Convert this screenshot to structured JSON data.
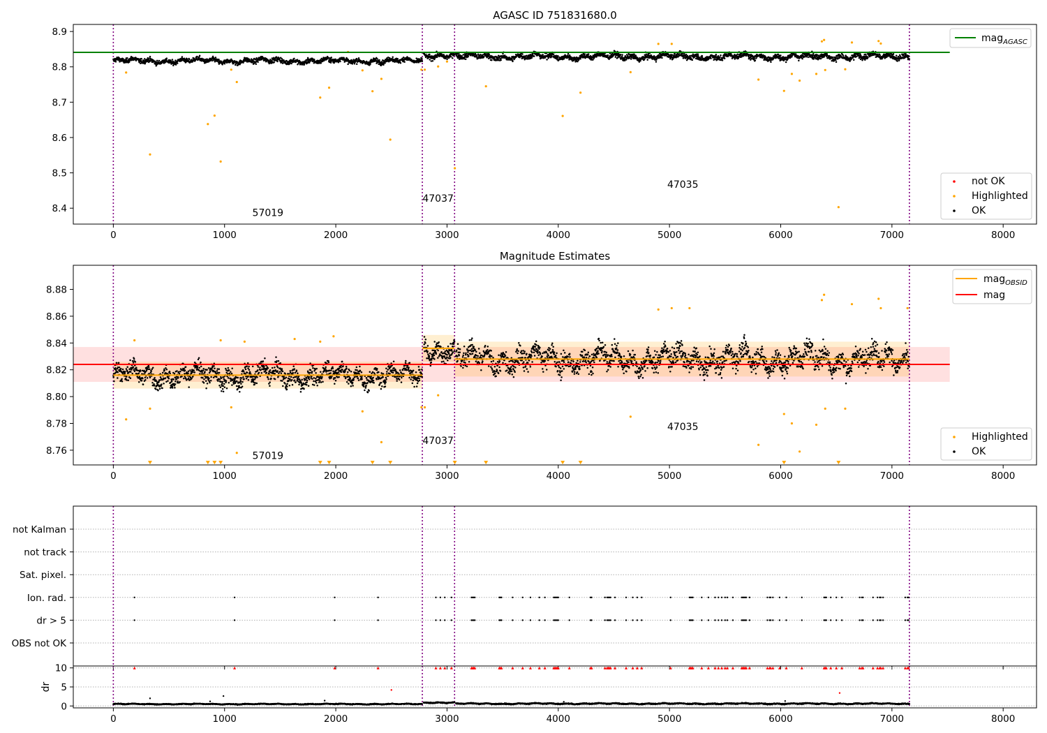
{
  "chart_data": [
    {
      "type": "scatter",
      "title": "AGASC ID 751831680.0",
      "xlim": [
        -360,
        8300
      ],
      "ylim": [
        8.355,
        8.92
      ],
      "xticks": [
        0,
        1000,
        2000,
        3000,
        4000,
        5000,
        6000,
        7000,
        8000
      ],
      "yticks": [
        8.4,
        8.5,
        8.6,
        8.7,
        8.8,
        8.9
      ],
      "ytick_labels": [
        "8.4",
        "8.5",
        "8.6",
        "8.7",
        "8.8",
        "8.9"
      ],
      "grid": false,
      "legend": {
        "top": {
          "placement": "upper right",
          "entries": [
            {
              "label": "mag",
              "sub": "AGASC",
              "color": "#008000",
              "kind": "line"
            }
          ]
        },
        "bottom": {
          "placement": "lower right",
          "entries": [
            {
              "label": "not OK",
              "color": "#ff0000",
              "kind": "dot"
            },
            {
              "label": "Highlighted",
              "color": "#ffa500",
              "kind": "dot"
            },
            {
              "label": "OK",
              "color": "#000000",
              "kind": "dot"
            }
          ]
        }
      },
      "hlines": [
        {
          "name": "mag_AGASC",
          "y": 8.841,
          "x": [
            -360,
            7520
          ],
          "color": "#008000"
        }
      ],
      "vlines": [
        0,
        2778,
        3068,
        7157
      ],
      "obsid_labels": [
        {
          "text": "57019",
          "x": 1250,
          "y": 8.378
        },
        {
          "text": "47037",
          "x": 2780,
          "y": 8.418
        },
        {
          "text": "47035",
          "x": 4980,
          "y": 8.458
        }
      ],
      "ok_segments": [
        {
          "x": [
            0,
            2778
          ],
          "mean": 8.817,
          "spread": 0.011
        },
        {
          "x": [
            2790,
            3068
          ],
          "mean": 8.833,
          "spread": 0.012
        },
        {
          "x": [
            3080,
            7157
          ],
          "mean": 8.829,
          "spread": 0.013
        }
      ],
      "highlighted": {
        "x": [
          115,
          330,
          850,
          910,
          965,
          1060,
          1110,
          1860,
          1940,
          2110,
          2240,
          2330,
          2410,
          2490,
          2770,
          2800,
          2920,
          3000,
          3070,
          3350,
          4040,
          4200,
          4650,
          4900,
          5020,
          5800,
          6030,
          6100,
          6170,
          6320,
          6370,
          6390,
          6400,
          6520,
          6580,
          6640,
          6880,
          6900
        ],
        "y": [
          8.784,
          8.552,
          8.638,
          8.662,
          8.532,
          8.792,
          8.757,
          8.713,
          8.741,
          8.842,
          8.79,
          8.731,
          8.766,
          8.594,
          8.792,
          8.792,
          8.801,
          8.815,
          8.513,
          8.745,
          8.661,
          8.727,
          8.785,
          8.865,
          8.865,
          8.764,
          8.732,
          8.78,
          8.761,
          8.78,
          8.872,
          8.876,
          8.791,
          8.403,
          8.793,
          8.869,
          8.873,
          8.866
        ]
      }
    },
    {
      "type": "scatter",
      "title": "Magnitude Estimates",
      "xlim": [
        -360,
        8300
      ],
      "ylim": [
        8.749,
        8.898
      ],
      "xticks": [
        0,
        1000,
        2000,
        3000,
        4000,
        5000,
        6000,
        7000,
        8000
      ],
      "yticks": [
        8.76,
        8.78,
        8.8,
        8.82,
        8.84,
        8.86,
        8.88
      ],
      "ytick_labels": [
        "8.76",
        "8.78",
        "8.80",
        "8.82",
        "8.84",
        "8.86",
        "8.88"
      ],
      "grid": false,
      "legend": {
        "top": {
          "placement": "upper right",
          "entries": [
            {
              "label": "mag",
              "sub": "OBSID",
              "color": "#ffa500",
              "kind": "line"
            },
            {
              "label": "mag",
              "sub": "",
              "color": "#ff0000",
              "kind": "line"
            }
          ]
        },
        "bottom": {
          "placement": "lower right",
          "entries": [
            {
              "label": "Highlighted",
              "color": "#ffa500",
              "kind": "dot"
            },
            {
              "label": "OK",
              "color": "#000000",
              "kind": "dot"
            }
          ]
        }
      },
      "mag_band": {
        "y": 8.824,
        "lo": 8.811,
        "hi": 8.837,
        "x": [
          -360,
          7520
        ]
      },
      "obsid_bands": [
        {
          "x": [
            0,
            2778
          ],
          "y": 8.816,
          "lo": 8.806,
          "hi": 8.826
        },
        {
          "x": [
            2778,
            3068
          ],
          "y": 8.836,
          "lo": 8.826,
          "hi": 8.846
        },
        {
          "x": [
            3068,
            7157
          ],
          "y": 8.828,
          "lo": 8.815,
          "hi": 8.841
        }
      ],
      "vlines": [
        0,
        2778,
        3068,
        7157
      ],
      "obsid_labels": [
        {
          "text": "57019",
          "x": 1250,
          "y": 8.7535
        },
        {
          "text": "47037",
          "x": 2780,
          "y": 8.7645
        },
        {
          "text": "47035",
          "x": 4980,
          "y": 8.775
        }
      ],
      "ok_segments": [
        {
          "x": [
            0,
            2778
          ],
          "mean": 8.816,
          "spread": 0.011
        },
        {
          "x": [
            2790,
            3068
          ],
          "mean": 8.836,
          "spread": 0.011
        },
        {
          "x": [
            3080,
            7157
          ],
          "mean": 8.828,
          "spread": 0.013
        }
      ],
      "highlighted": {
        "x": [
          115,
          190,
          330,
          965,
          1060,
          1110,
          1180,
          1630,
          1860,
          1980,
          2240,
          2410,
          2770,
          2800,
          2920,
          4650,
          4900,
          5020,
          5180,
          5800,
          6030,
          6100,
          6170,
          6320,
          6370,
          6390,
          6400,
          6580,
          6640,
          6880,
          6900,
          7140
        ],
        "y": [
          8.783,
          8.842,
          8.791,
          8.842,
          8.792,
          8.758,
          8.841,
          8.843,
          8.841,
          8.845,
          8.789,
          8.766,
          8.792,
          8.792,
          8.801,
          8.785,
          8.865,
          8.866,
          8.866,
          8.764,
          8.787,
          8.78,
          8.759,
          8.779,
          8.872,
          8.876,
          8.791,
          8.791,
          8.869,
          8.873,
          8.866,
          8.866
        ]
      },
      "lower_markers": {
        "y": 8.75,
        "x": [
          330,
          850,
          910,
          965,
          1860,
          1940,
          2330,
          2490,
          3070,
          3350,
          4040,
          4200,
          6030,
          6520
        ]
      }
    },
    {
      "type": "scatter",
      "title": "",
      "xlim": [
        -360,
        8300
      ],
      "xticks": [
        0,
        1000,
        2000,
        3000,
        4000,
        5000,
        6000,
        7000,
        8000
      ],
      "categories": [
        "not Kalman",
        "not track",
        "Sat. pixel.",
        "Ion. rad.",
        "dr > 5",
        "OBS not OK"
      ],
      "grid": true,
      "vlines": [
        0,
        2778,
        3068,
        7157
      ],
      "flagged_x": [
        190,
        1090,
        1990,
        2380,
        2900,
        2940,
        2980,
        3040,
        3220,
        3230,
        3240,
        3250,
        3470,
        3480,
        3490,
        3590,
        3680,
        3750,
        3830,
        3880,
        3960,
        3970,
        3980,
        3990,
        4000,
        4100,
        4290,
        4300,
        4420,
        4440,
        4450,
        4460,
        4470,
        4510,
        4610,
        4670,
        4710,
        4750,
        5010,
        5180,
        5190,
        5200,
        5210,
        5290,
        5350,
        5410,
        5440,
        5470,
        5500,
        5520,
        5570,
        5650,
        5660,
        5670,
        5680,
        5690,
        5720,
        5880,
        5900,
        5910,
        5930,
        5990,
        6050,
        6190,
        6390,
        6400,
        6410,
        6450,
        6500,
        6550,
        6710,
        6730,
        6740,
        6830,
        6870,
        6890,
        6900,
        6920,
        7120,
        7140,
        7150
      ]
    },
    {
      "type": "scatter",
      "title": "",
      "ylabel": "dr",
      "xlim": [
        -360,
        8300
      ],
      "ylim": [
        -0.5,
        10.5
      ],
      "xticks": [
        0,
        1000,
        2000,
        3000,
        4000,
        5000,
        6000,
        7000,
        8000
      ],
      "xtick_labels": [
        "0",
        "1000",
        "2000",
        "3000",
        "4000",
        "5000",
        "6000",
        "7000",
        "8000"
      ],
      "yticks": [
        0,
        5,
        10
      ],
      "ytick_labels": [
        "0",
        "5",
        "10"
      ],
      "grid": true,
      "vlines": [
        0,
        2778,
        3068,
        7157
      ],
      "ok_segments": [
        {
          "x": [
            0,
            2778
          ],
          "mean": 0.5,
          "spread": 0.15
        },
        {
          "x": [
            2790,
            3068
          ],
          "mean": 0.9,
          "spread": 0.2
        },
        {
          "x": [
            3080,
            7157
          ],
          "mean": 0.6,
          "spread": 0.2
        }
      ],
      "outliers": {
        "x": [
          330,
          870,
          990,
          1900,
          2500,
          4050,
          6040,
          6530
        ],
        "y": [
          2.0,
          1.2,
          2.6,
          1.4,
          4.2,
          1.1,
          1.3,
          3.4
        ]
      },
      "clipped_y": 10,
      "flagged_x_ref": "chart 3"
    }
  ]
}
